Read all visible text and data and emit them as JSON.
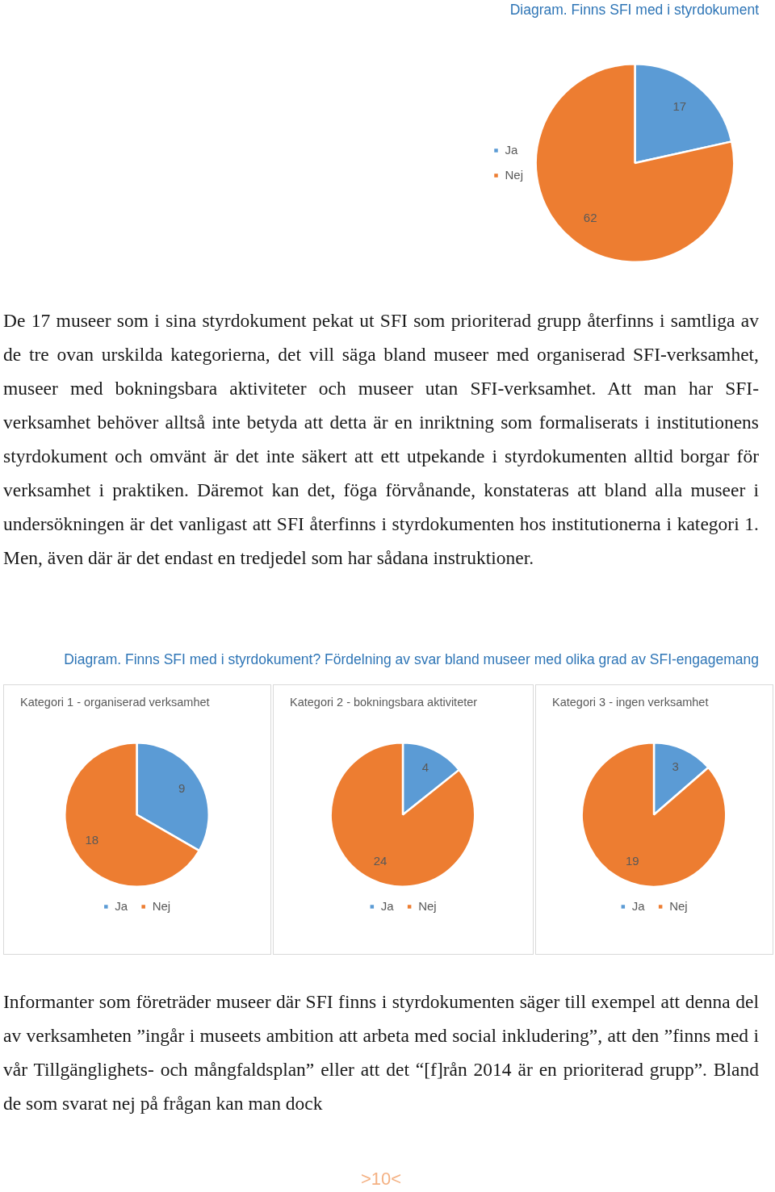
{
  "chart_data": [
    {
      "type": "pie",
      "title": "Diagram. Finns SFI med i styrdokument",
      "categories": [
        "Ja",
        "Nej"
      ],
      "values": [
        17,
        62
      ],
      "colors": [
        "#5b9bd5",
        "#ed7d31"
      ],
      "data_labels": true,
      "legend": "left",
      "annotations": [
        "De 17 museer som i sina styrdokument pekat ut SFI som prioriterad grupp återfinns i samtliga av de tre ovan urskilda kategorierna, det vill säga bland museer med organiserad SFI-verksamhet, museer med bokningsbara aktiviteter och museer utan SFI-verksamhet. Att man har SFI-verksamhet behöver alltså inte betyda att detta är en inriktning som formaliserats i institutionens styrdokument och omvänt är det inte säkert att ett utpekande i styrdokumenten alltid borgar för verksamhet i praktiken. Däremot kan det, föga förvånande, konstateras att bland alla museer i undersökningen är det vanligast att SFI återfinns i styrdokumenten hos institutionerna i kategori 1. Men, även där är det endast en tredjedel som har sådana instruktioner."
      ]
    },
    {
      "type": "pie",
      "title": "Kategori 1 - organiserad verksamhet",
      "categories": [
        "Ja",
        "Nej"
      ],
      "values": [
        9,
        18
      ],
      "colors": [
        "#5b9bd5",
        "#ed7d31"
      ],
      "data_labels": true,
      "legend": "bottom",
      "annotations": [
        "Diagram. Finns SFI med i styrdokument? Fördelning av svar bland museer med olika grad av SFI-engagemang"
      ]
    },
    {
      "type": "pie",
      "title": "Kategori 2 - bokningsbara aktiviteter",
      "categories": [
        "Ja",
        "Nej"
      ],
      "values": [
        4,
        24
      ],
      "colors": [
        "#5b9bd5",
        "#ed7d31"
      ],
      "data_labels": true,
      "legend": "bottom"
    },
    {
      "type": "pie",
      "title": "Kategori 3 - ingen verksamhet",
      "categories": [
        "Ja",
        "Nej"
      ],
      "values": [
        3,
        19
      ],
      "colors": [
        "#5b9bd5",
        "#ed7d31"
      ],
      "data_labels": true,
      "legend": "bottom",
      "annotations": [
        "Informanter som företräder museer där SFI finns i styrdokumenten säger till exempel att denna del av verksamheten ”ingår i museets ambition att arbeta med social inkludering”, att den ”finns med i vår Tillgänglighets- och mångfaldsplan” eller att det “[f]rån 2014 är en prioriterad grupp”. Bland de som svarat nej på frågan kan man dock",
        ">10<"
      ]
    }
  ]
}
